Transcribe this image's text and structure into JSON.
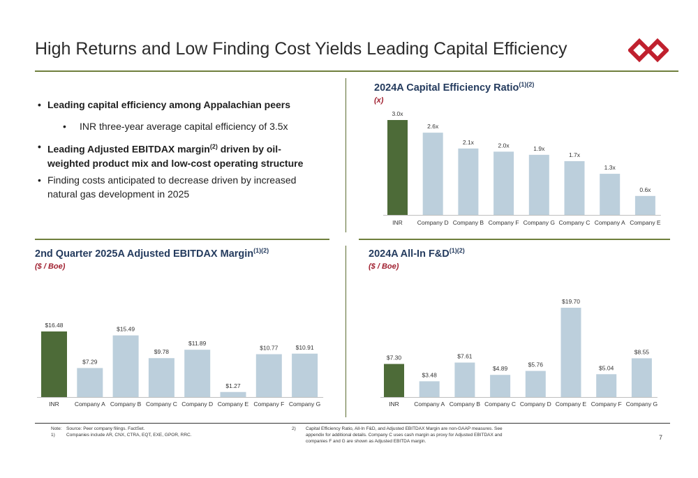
{
  "title": "High Returns and Low Finding Cost Yields Leading Capital Efficiency",
  "page_number": "7",
  "colors": {
    "highlight": "#4d6b38",
    "peer": "#bccfdc",
    "title_rule": "#6f7f3c",
    "panel_title": "#243b5e",
    "subtitle": "#a02030",
    "logo": "#c0202e"
  },
  "bullets": {
    "b1": "Leading capital efficiency among Appalachian peers",
    "b1_sub": "INR three-year average capital efficiency of 3.5x",
    "b2_pre": "Leading Adjusted EBITDAX margin",
    "b2_sup": "(2)",
    "b2_post_line1": " driven by oil-",
    "b2_line2": "weighted product mix and low-cost operating structure",
    "b3_line1": "Finding costs anticipated to decrease driven by increased",
    "b3_line2": "natural gas development in 2025"
  },
  "panels": {
    "cap": {
      "title": "2024A Capital Efficiency Ratio",
      "sup": "(1)(2)",
      "subtitle": "(x)"
    },
    "margin": {
      "title": "2nd Quarter 2025A Adjusted EBITDAX Margin",
      "sup": "(1)(2)",
      "subtitle": "($ / Boe)"
    },
    "fd": {
      "title": "2024A All-In F&D",
      "sup": "(1)(2)",
      "subtitle": "($ / Boe)"
    }
  },
  "footnotes": {
    "note_label": "Note:",
    "note": "Source: Peer company filings. FactSet.",
    "n1_label": "1)",
    "n1": "Companies include AR, CNX, CTRA, EQT, EXE, GPOR, RRC.",
    "n2_label": "2)",
    "n2_l1": "Capital Efficiency Ratio, All-In F&D, and Adjusted EBITDAX Margin are non-GAAP measures. See",
    "n2_l2": "appendix for additional details. Company C uses cash margin as proxy for Adjusted EBITDAX and",
    "n2_l3": "companies F and G are shown as Adjusted EBITDA margin."
  },
  "logo_icon": "diamond-chain-logo-icon",
  "chart_data": [
    {
      "id": "cap",
      "type": "bar",
      "title": "2024A Capital Efficiency Ratio(1)(2)",
      "ylabel": "(x)",
      "categories": [
        "INR",
        "Company D",
        "Company B",
        "Company F",
        "Company G",
        "Company C",
        "Company A",
        "Company E"
      ],
      "values": [
        3.0,
        2.6,
        2.1,
        2.0,
        1.9,
        1.7,
        1.3,
        0.6
      ],
      "labels": [
        "3.0x",
        "2.6x",
        "2.1x",
        "2.0x",
        "1.9x",
        "1.7x",
        "1.3x",
        "0.6x"
      ],
      "ylim": [
        0,
        3.0
      ],
      "highlight_index": 0,
      "grid": false
    },
    {
      "id": "margin",
      "type": "bar",
      "title": "2nd Quarter 2025A Adjusted EBITDAX Margin(1)(2)",
      "ylabel": "($ / Boe)",
      "categories": [
        "INR",
        "Company A",
        "Company B",
        "Company C",
        "Company D",
        "Company E",
        "Company F",
        "Company G"
      ],
      "values": [
        16.48,
        7.29,
        15.49,
        9.78,
        11.89,
        1.27,
        10.77,
        10.91
      ],
      "labels": [
        "$16.48",
        "$7.29",
        "$15.49",
        "$9.78",
        "$11.89",
        "$1.27",
        "$10.77",
        "$10.91"
      ],
      "ylim": [
        0,
        16.48
      ],
      "highlight_index": 0,
      "grid": false
    },
    {
      "id": "fd",
      "type": "bar",
      "title": "2024A All-In F&D(1)(2)",
      "ylabel": "($ / Boe)",
      "categories": [
        "INR",
        "Company A",
        "Company B",
        "Company C",
        "Company D",
        "Company E",
        "Company F",
        "Company G"
      ],
      "values": [
        7.3,
        3.48,
        7.61,
        4.89,
        5.76,
        19.7,
        5.04,
        8.55
      ],
      "labels": [
        "$7.30",
        "$3.48",
        "$7.61",
        "$4.89",
        "$5.76",
        "$19.70",
        "$5.04",
        "$8.55"
      ],
      "ylim": [
        0,
        19.7
      ],
      "highlight_index": 0,
      "grid": false
    }
  ]
}
